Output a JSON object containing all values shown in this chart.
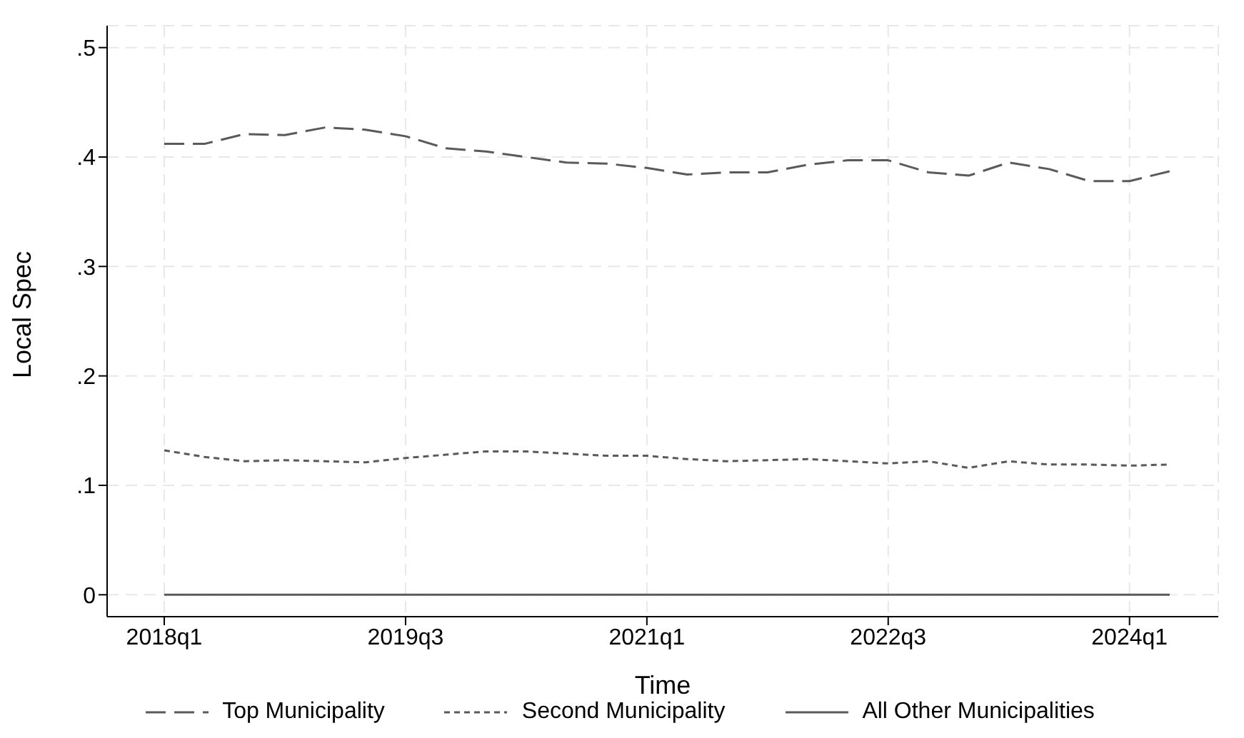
{
  "chart_data": {
    "type": "line",
    "xlabel": "Time",
    "ylabel": "Local Spec",
    "categories": [
      "2018q1",
      null,
      null,
      null,
      null,
      null,
      "2019q3",
      null,
      null,
      null,
      null,
      null,
      "2021q1",
      null,
      null,
      null,
      null,
      null,
      "2022q3",
      null,
      null,
      null,
      null,
      null,
      "2024q1",
      null
    ],
    "series": [
      {
        "name": "Top Municipality",
        "color": "#5a5a5a",
        "line_style": "dashed",
        "values": [
          0.412,
          0.412,
          0.421,
          0.42,
          0.427,
          0.425,
          0.419,
          0.408,
          0.405,
          0.4,
          0.395,
          0.394,
          0.39,
          0.384,
          0.386,
          0.386,
          0.393,
          0.397,
          0.397,
          0.386,
          0.383,
          0.395,
          0.389,
          0.378,
          0.378,
          0.387
        ]
      },
      {
        "name": "Second Municipality",
        "color": "#5a5a5a",
        "line_style": "dotted",
        "values": [
          0.132,
          0.126,
          0.122,
          0.123,
          0.122,
          0.121,
          0.125,
          0.128,
          0.131,
          0.131,
          0.129,
          0.127,
          0.127,
          0.124,
          0.122,
          0.123,
          0.124,
          0.122,
          0.12,
          0.122,
          0.116,
          0.122,
          0.119,
          0.119,
          0.118,
          0.119
        ]
      },
      {
        "name": "All Other Municipalities",
        "color": "#5a5a5a",
        "line_style": "solid",
        "values": [
          0,
          0,
          0,
          0,
          0,
          0,
          0,
          0,
          0,
          0,
          0,
          0,
          0,
          0,
          0,
          0,
          0,
          0,
          0,
          0,
          0,
          0,
          0,
          0,
          0,
          0
        ]
      }
    ],
    "ylim": [
      -0.02,
      0.52
    ],
    "yticks": [
      0,
      {
        "value": 0.1,
        "label": ".1"
      },
      {
        "value": 0.2,
        "label": ".2"
      },
      {
        "value": 0.3,
        "label": ".3"
      },
      {
        "value": 0.4,
        "label": ".4"
      },
      {
        "value": 0.5,
        "label": ".5"
      }
    ],
    "grid": true,
    "legend": "bottom",
    "marker": "none"
  }
}
